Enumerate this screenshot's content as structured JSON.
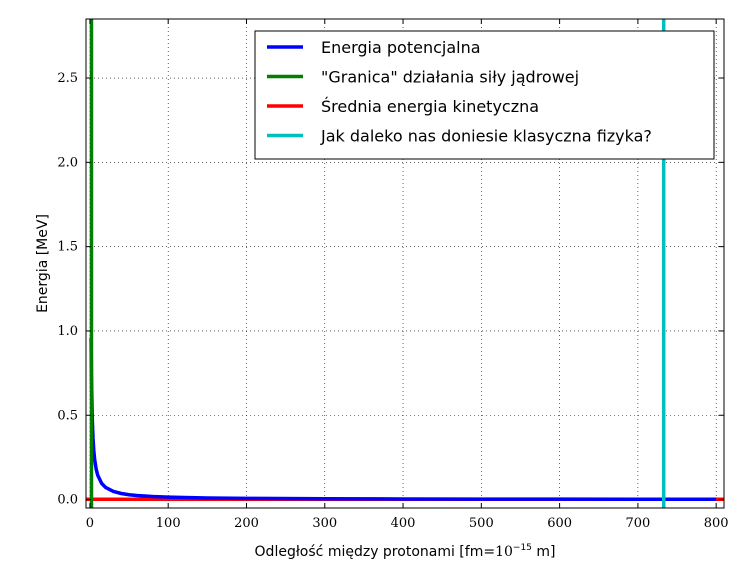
{
  "chart_data": {
    "type": "line",
    "xlabel": "Odległość między protonami [fm=",
    "xlabel_math": "10",
    "xlabel_exp": "−15",
    "xlabel_tail": " m]",
    "ylabel": "Energia [MeV]",
    "xlim": [
      -5,
      810
    ],
    "ylim": [
      -0.05,
      2.85
    ],
    "x_ticks": [
      0,
      100,
      200,
      300,
      400,
      500,
      600,
      700,
      800
    ],
    "x_tick_labels": [
      "0",
      "100",
      "200",
      "300",
      "400",
      "500",
      "600",
      "700",
      "800"
    ],
    "y_ticks": [
      0.0,
      0.5,
      1.0,
      1.5,
      2.0,
      2.5
    ],
    "y_tick_labels": [
      "0.0",
      "0.5",
      "1.0",
      "1.5",
      "2.0",
      "2.5"
    ],
    "grid": true,
    "legend_position": "top-right",
    "series": [
      {
        "name": "Energia potencjalna",
        "color": "#0000ff",
        "kind": "curve",
        "x": [
          1.5,
          2,
          3,
          4,
          5,
          6,
          8,
          10,
          15,
          20,
          30,
          40,
          50,
          60,
          80,
          100,
          150,
          200,
          300,
          400,
          500,
          600,
          700,
          800
        ],
        "y": [
          0.96,
          0.72,
          0.48,
          0.36,
          0.288,
          0.24,
          0.18,
          0.144,
          0.096,
          0.072,
          0.048,
          0.036,
          0.0288,
          0.024,
          0.018,
          0.0144,
          0.0096,
          0.0072,
          0.0048,
          0.0036,
          0.0029,
          0.0024,
          0.0021,
          0.0018
        ]
      },
      {
        "name": "\"Granica\" działania siły jądrowej",
        "color": "#008000",
        "kind": "vline",
        "x": [
          2,
          2
        ],
        "y": [
          -0.05,
          2.85
        ]
      },
      {
        "name": "Średnia energia kinetyczna",
        "color": "#ff0000",
        "kind": "hline",
        "x": [
          -5,
          810
        ],
        "y": [
          0.002,
          0.002
        ]
      },
      {
        "name": "Jak daleko nas doniesie klasyczna fizyka?",
        "color": "#00bfbf",
        "kind": "vline",
        "x": [
          733,
          733
        ],
        "y": [
          -0.05,
          2.85
        ]
      }
    ]
  }
}
